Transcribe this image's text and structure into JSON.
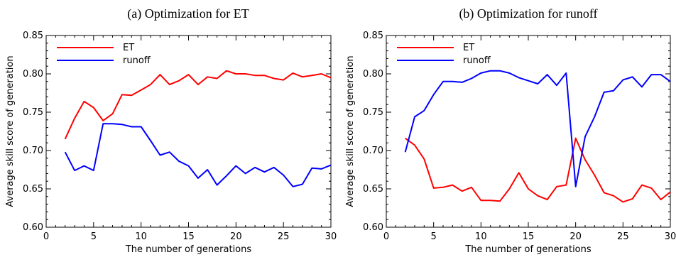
{
  "chart_data": [
    {
      "type": "line",
      "title": "(a) Optimization for ET",
      "xlabel": "The number of generations",
      "ylabel": "Average skill score of generation",
      "xlim": [
        0,
        30
      ],
      "ylim": [
        0.6,
        0.85
      ],
      "xticks": [
        "0",
        "5",
        "10",
        "15",
        "20",
        "25",
        "30"
      ],
      "yticks": [
        "0.60",
        "0.65",
        "0.70",
        "0.75",
        "0.80",
        "0.85"
      ],
      "legend_position": "top-left",
      "grid": false,
      "x": [
        2,
        3,
        4,
        5,
        6,
        7,
        8,
        9,
        10,
        11,
        12,
        13,
        14,
        15,
        16,
        17,
        18,
        19,
        20,
        21,
        22,
        23,
        24,
        25,
        26,
        27,
        28,
        29,
        30
      ],
      "series": [
        {
          "name": "ET",
          "color": "#ff0000",
          "values": [
            0.715,
            0.742,
            0.764,
            0.756,
            0.739,
            0.748,
            0.773,
            0.772,
            0.779,
            0.786,
            0.799,
            0.786,
            0.791,
            0.799,
            0.786,
            0.796,
            0.794,
            0.804,
            0.8,
            0.8,
            0.798,
            0.798,
            0.794,
            0.792,
            0.801,
            0.796,
            0.798,
            0.8,
            0.795
          ]
        },
        {
          "name": "runoff",
          "color": "#0000ff",
          "values": [
            0.698,
            0.674,
            0.68,
            0.674,
            0.735,
            0.735,
            0.734,
            0.731,
            0.731,
            0.713,
            0.694,
            0.698,
            0.686,
            0.68,
            0.664,
            0.675,
            0.655,
            0.667,
            0.68,
            0.67,
            0.678,
            0.672,
            0.678,
            0.668,
            0.653,
            0.656,
            0.677,
            0.676,
            0.681
          ]
        }
      ]
    },
    {
      "type": "line",
      "title": "(b) Optimization for runoff",
      "xlabel": "The number of generations",
      "ylabel": "Average skill score of generation",
      "xlim": [
        0,
        30
      ],
      "ylim": [
        0.6,
        0.85
      ],
      "xticks": [
        "0",
        "5",
        "10",
        "15",
        "20",
        "25",
        "30"
      ],
      "yticks": [
        "0.60",
        "0.65",
        "0.70",
        "0.75",
        "0.80",
        "0.85"
      ],
      "legend_position": "top-left",
      "grid": false,
      "x": [
        2,
        3,
        4,
        5,
        6,
        7,
        8,
        9,
        10,
        11,
        12,
        13,
        14,
        15,
        16,
        17,
        18,
        19,
        20,
        21,
        22,
        23,
        24,
        25,
        26,
        27,
        28,
        29,
        30
      ],
      "series": [
        {
          "name": "ET",
          "color": "#ff0000",
          "values": [
            0.716,
            0.707,
            0.689,
            0.651,
            0.652,
            0.655,
            0.647,
            0.652,
            0.635,
            0.635,
            0.634,
            0.65,
            0.671,
            0.65,
            0.641,
            0.636,
            0.653,
            0.655,
            0.716,
            0.688,
            0.668,
            0.645,
            0.641,
            0.633,
            0.637,
            0.655,
            0.651,
            0.636,
            0.646
          ]
        },
        {
          "name": "runoff",
          "color": "#0000ff",
          "values": [
            0.698,
            0.744,
            0.752,
            0.773,
            0.79,
            0.79,
            0.789,
            0.794,
            0.801,
            0.804,
            0.804,
            0.801,
            0.795,
            0.791,
            0.787,
            0.799,
            0.785,
            0.801,
            0.653,
            0.718,
            0.744,
            0.776,
            0.778,
            0.792,
            0.796,
            0.783,
            0.799,
            0.799,
            0.79
          ]
        }
      ]
    }
  ]
}
